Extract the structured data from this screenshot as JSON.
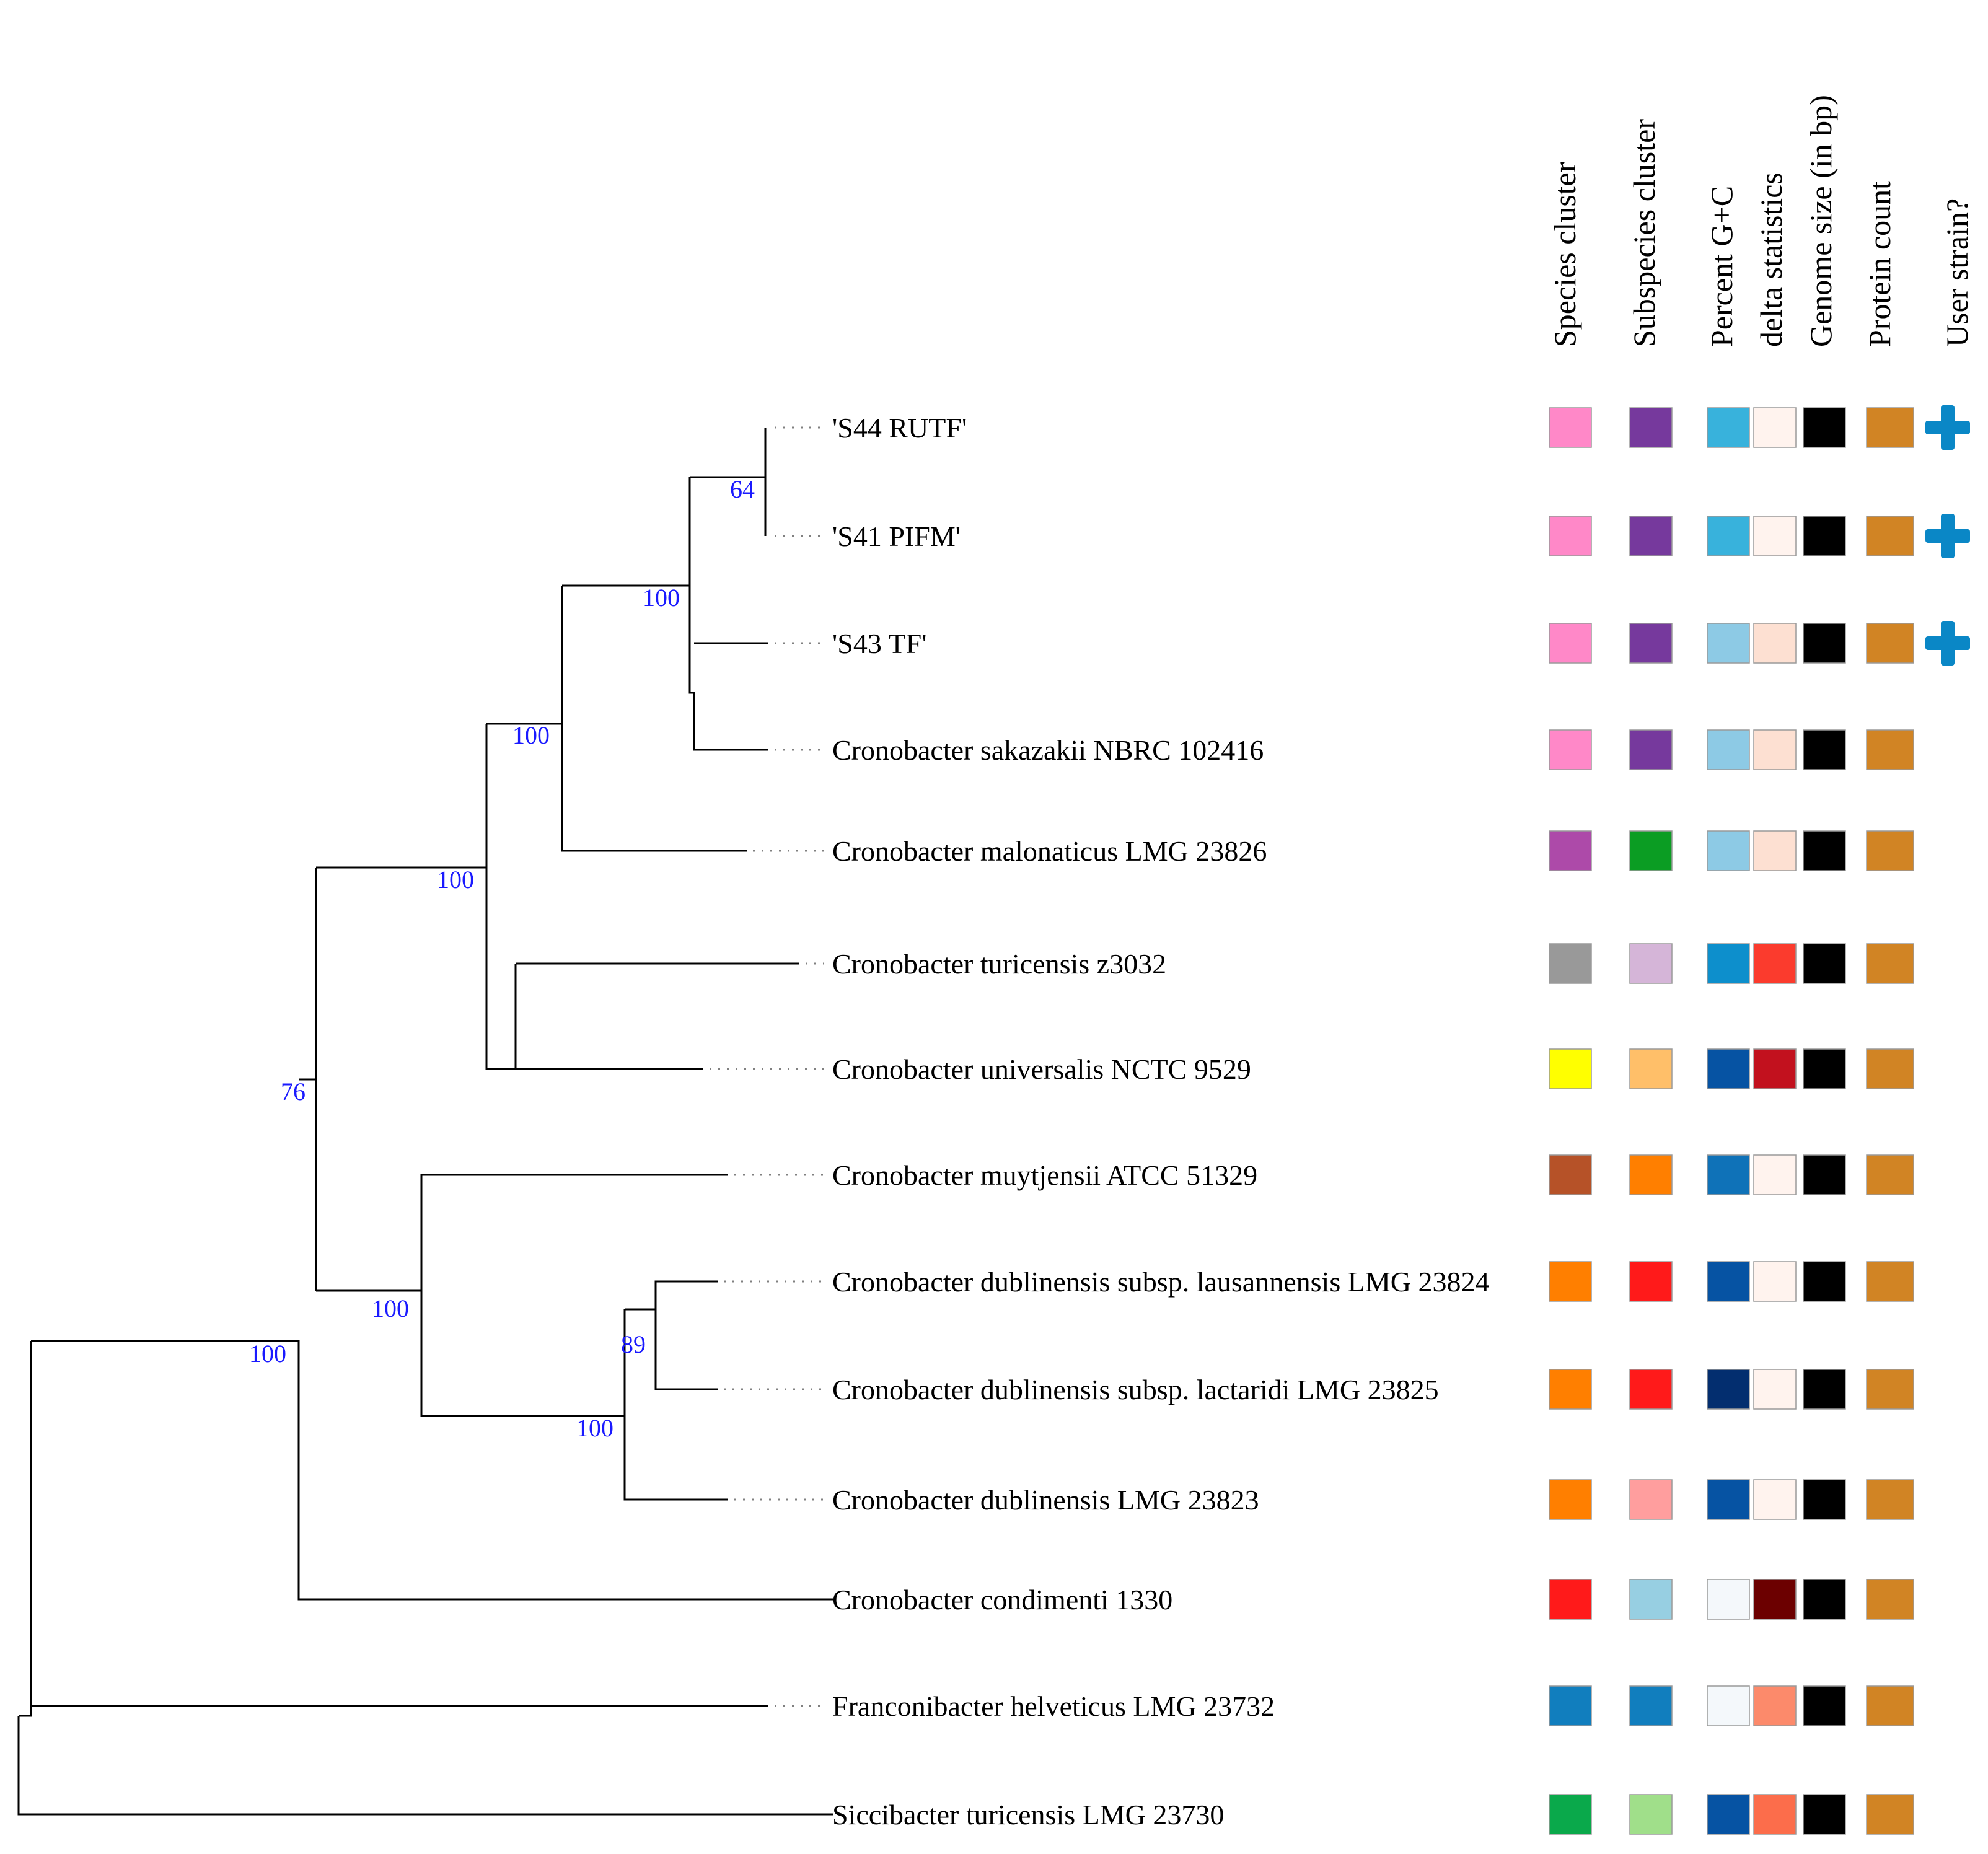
{
  "columns": [
    {
      "label": "Species cluster"
    },
    {
      "label": "Subspecies cluster"
    },
    {
      "label": "Percent G+C"
    },
    {
      "label": "delta statistics"
    },
    {
      "label": "Genome size (in bp)"
    },
    {
      "label": "Protein count"
    },
    {
      "label": "User strain?"
    }
  ],
  "leaves": [
    {
      "label": "'S44 RUTF'",
      "colors": [
        "#ff88c8",
        "#76399d",
        "#38b2dc",
        "#fff3ee",
        "#000000",
        "#d18424"
      ],
      "user_strain": true
    },
    {
      "label": "'S41 PIFM'",
      "colors": [
        "#ff88c8",
        "#76399d",
        "#38b2dc",
        "#fff3ee",
        "#000000",
        "#d18424"
      ],
      "user_strain": true
    },
    {
      "label": "'S43 TF'",
      "colors": [
        "#ff88c8",
        "#76399d",
        "#8dcae5",
        "#fde0d2",
        "#000000",
        "#d18424"
      ],
      "user_strain": true
    },
    {
      "label": "Cronobacter sakazakii NBRC 102416",
      "colors": [
        "#ff88c8",
        "#76399d",
        "#8dcae5",
        "#fde0d2",
        "#000000",
        "#d18424"
      ],
      "user_strain": false
    },
    {
      "label": "Cronobacter malonaticus LMG 23826",
      "colors": [
        "#ad4aa9",
        "#0b9d23",
        "#8dcae5",
        "#fde0d2",
        "#000000",
        "#d18424"
      ],
      "user_strain": false
    },
    {
      "label": "Cronobacter turicensis z3032",
      "colors": [
        "#999999",
        "#d5b5d8",
        "#0d8fcc",
        "#fb3b2d",
        "#000000",
        "#d18424"
      ],
      "user_strain": false
    },
    {
      "label": "Cronobacter universalis NCTC 9529",
      "colors": [
        "#ffff00",
        "#ffbf69",
        "#0653a3",
        "#c2111e",
        "#000000",
        "#d18424"
      ],
      "user_strain": false
    },
    {
      "label": "Cronobacter muytjensii ATCC 51329",
      "colors": [
        "#b65228",
        "#ff7f00",
        "#0f72b8",
        "#fff3ee",
        "#000000",
        "#d18424"
      ],
      "user_strain": false
    },
    {
      "label": "Cronobacter dublinensis subsp. lausannensis LMG 23824",
      "colors": [
        "#ff7f00",
        "#ff1a1a",
        "#0653a3",
        "#fff3ee",
        "#000000",
        "#d18424"
      ],
      "user_strain": false
    },
    {
      "label": "Cronobacter dublinensis subsp. lactaridi LMG 23825",
      "colors": [
        "#ff7f00",
        "#ff1a1a",
        "#032e6f",
        "#fff3ee",
        "#000000",
        "#d18424"
      ],
      "user_strain": false
    },
    {
      "label": "Cronobacter dublinensis LMG 23823",
      "colors": [
        "#ff7f00",
        "#ff9e9e",
        "#0653a3",
        "#fff3ee",
        "#000000",
        "#d18424"
      ],
      "user_strain": false
    },
    {
      "label": "Cronobacter condimenti 1330",
      "colors": [
        "#ff1a1a",
        "#97cfe2",
        "#f4f8fb",
        "#6c0000",
        "#000000",
        "#d18424"
      ],
      "user_strain": false
    },
    {
      "label": "Franconibacter helveticus LMG 23732",
      "colors": [
        "#117ebe",
        "#117ebe",
        "#f4f8fb",
        "#fc8a6b",
        "#000000",
        "#d18424"
      ],
      "user_strain": false
    },
    {
      "label": "Siccibacter turicensis LMG 23730",
      "colors": [
        "#0aa94b",
        "#a0df8a",
        "#0653a3",
        "#fc6d4b",
        "#000000",
        "#d18424"
      ],
      "user_strain": false
    }
  ],
  "bootstrap_values": [
    "64",
    "100",
    "100",
    "100",
    "76",
    "100",
    "89",
    "100",
    "100"
  ],
  "user_strain_icon": {
    "name": "plus-icon",
    "color": "#0a87c6"
  }
}
